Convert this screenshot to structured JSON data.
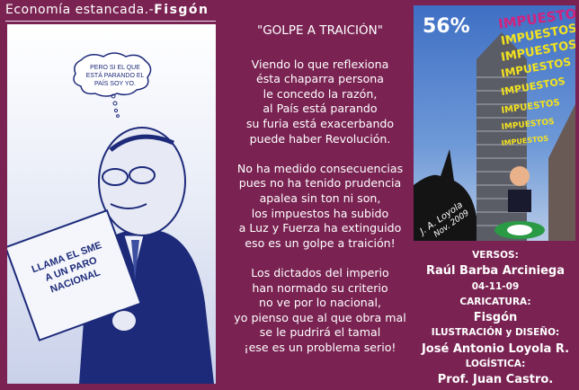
{
  "header": {
    "title": "Economía estancada.-",
    "author": "Fisgón"
  },
  "cartoon": {
    "thought_bubble": [
      "PERO SI EL QUE",
      "ESTÁ PARANDO EL",
      "PAÍS SOY YO."
    ],
    "newspaper_headline": [
      "LLAMA EL SME",
      "A UN PARO",
      "NACIONAL"
    ]
  },
  "poem": {
    "title": "\"GOLPE A TRAICIÓN\"",
    "stanzas": [
      [
        "Viendo lo que reflexiona",
        "ésta chaparra persona",
        "le concedo la razón,",
        "al País está parando",
        "su furia está exacerbando",
        "puede haber Revolución."
      ],
      [
        "No ha medido consecuencias",
        "pues no ha tenido prudencia",
        "apalea sin ton ni son,",
        "los impuestos ha subido",
        "a Luz y Fuerza ha extinguido",
        "eso es un golpe a traición!"
      ],
      [
        "Los dictados del imperio",
        "han normado su criterio",
        "no ve por lo nacional,",
        "yo pienso que al que obra mal",
        "se le pudrirá el tamal",
        "¡ese es un problema serio!"
      ]
    ]
  },
  "photo": {
    "percent": "56%",
    "tax_word": "IMPUESTOS",
    "signature": [
      "J. A. Loyola",
      "Nov. 2009"
    ],
    "colors": {
      "first_word": "#d0237f",
      "other_words": "#f3e21f"
    }
  },
  "credits": {
    "verses_label": "VERSOS:",
    "verses_name": "Raúl Barba Arciniega",
    "date": "04-11-09",
    "cartoon_label": "CARICATURA:",
    "cartoon_name": "Fisgón",
    "design_label": "ILUSTRACIÓN y DISEÑO:",
    "design_name": "José Antonio Loyola R.",
    "logistics_label": "LOGÍSTICA:",
    "logistics_name": "Prof. Juan Castro."
  },
  "colors": {
    "background": "#7a2352",
    "text": "#ffffff"
  }
}
